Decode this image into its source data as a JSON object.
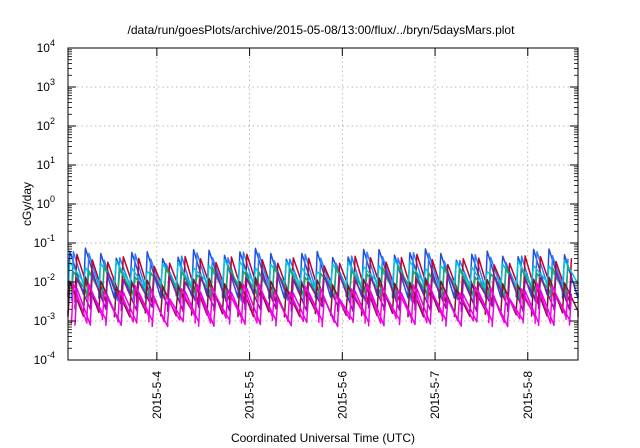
{
  "chart_data": {
    "type": "line",
    "title": "/data/run/goesPlots/archive/2015-05-08/13:00/flux/../bryn/5daysMars.plot",
    "xlabel": "Coordinated Universal Time (UTC)",
    "ylabel": "cGy/day",
    "yscale": "log",
    "ylim": [
      0.0001,
      10000
    ],
    "y_ticks": [
      {
        "value": 0.0001,
        "base": "10",
        "exp": "-4"
      },
      {
        "value": 0.001,
        "base": "10",
        "exp": "-3"
      },
      {
        "value": 0.01,
        "base": "10",
        "exp": "-2"
      },
      {
        "value": 0.1,
        "base": "10",
        "exp": "-1"
      },
      {
        "value": 1,
        "base": "10",
        "exp": "0"
      },
      {
        "value": 10,
        "base": "10",
        "exp": "1"
      },
      {
        "value": 100,
        "base": "10",
        "exp": "2"
      },
      {
        "value": 1000,
        "base": "10",
        "exp": "3"
      },
      {
        "value": 10000,
        "base": "10",
        "exp": "4"
      }
    ],
    "xlim": [
      "2015-05-03T01:00",
      "2015-05-08T13:00"
    ],
    "x_ticks": [
      {
        "value": "2015-05-04T00:00",
        "label": "2015-5-4"
      },
      {
        "value": "2015-05-05T00:00",
        "label": "2015-5-5"
      },
      {
        "value": "2015-05-06T00:00",
        "label": "2015-5-6"
      },
      {
        "value": "2015-05-07T00:00",
        "label": "2015-5-7"
      },
      {
        "value": "2015-05-08T00:00",
        "label": "2015-5-8"
      }
    ],
    "grid": true,
    "legend": "none",
    "pattern": "periodic sawtooth, ~6 peaks per day",
    "series": [
      {
        "color": "#1f4fe0",
        "peak": 0.055,
        "trough": 0.0048
      },
      {
        "color": "#2a7fff",
        "peak": 0.045,
        "trough": 0.004
      },
      {
        "color": "#c0002a",
        "peak": 0.038,
        "trough": 0.0035
      },
      {
        "color": "#00c8d8",
        "peak": 0.028,
        "trough": 0.0085
      },
      {
        "color": "#18a86a",
        "peak": 0.02,
        "trough": 0.005
      },
      {
        "color": "#8a1a9a",
        "peak": 0.014,
        "trough": 0.0022
      },
      {
        "color": "#7a1530",
        "peak": 0.01,
        "trough": 0.0016
      },
      {
        "color": "#ff00dd",
        "peak": 0.007,
        "trough": 0.0011
      },
      {
        "color": "#e800e8",
        "peak": 0.005,
        "trough": 0.0009
      }
    ]
  }
}
